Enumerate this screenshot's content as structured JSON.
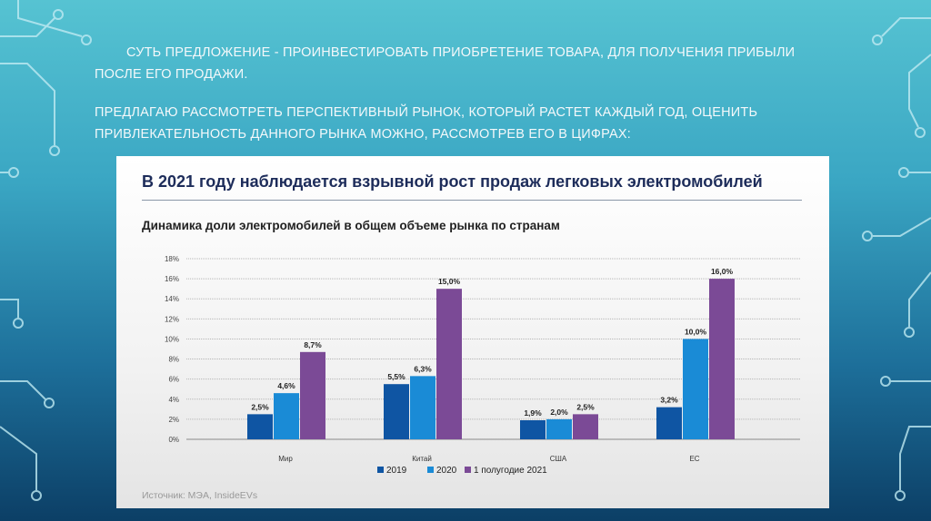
{
  "slide": {
    "paragraph1": "СУТЬ ПРЕДЛОЖЕНИЕ - ПРОИНВЕСТИРОВАТЬ ПРИОБРЕТЕНИЕ ТОВАРА, ДЛЯ ПОЛУЧЕНИЯ ПРИБЫЛИ ПОСЛЕ ЕГО ПРОДАЖИ.",
    "paragraph2": "ПРЕДЛАГАЮ РАССМОТРЕТЬ ПЕРСПЕКТИВНЫЙ РЫНОК, КОТОРЫЙ РАСТЕТ КАЖДЫЙ ГОД, ОЦЕНИТЬ ПРИВЛЕКАТЕЛЬНОСТЬ ДАННОГО РЫНКА МОЖНО, РАССМОТРЕВ ЕГО В ЦИФРАХ:"
  },
  "panel": {
    "title": "В 2021 году наблюдается взрывной рост продаж легковых электромобилей",
    "source": "Источник: МЭА, InsideEVs"
  },
  "chart_data": {
    "type": "bar",
    "title": "Динамика доли электромобилей в общем объеме рынка по странам",
    "categories": [
      "Мир",
      "Китай",
      "США",
      "ЕС"
    ],
    "series": [
      {
        "name": "2019",
        "values": [
          2.5,
          5.5,
          1.9,
          3.2
        ],
        "labels": [
          "2,5%",
          "5,5%",
          "1,9%",
          "3,2%"
        ],
        "color": "#0f55a3"
      },
      {
        "name": "2020",
        "values": [
          4.6,
          6.3,
          2.0,
          10.0
        ],
        "labels": [
          "4,6%",
          "6,3%",
          "2,0%",
          "10,0%"
        ],
        "color": "#1a8bd6"
      },
      {
        "name": "1 полугодие 2021",
        "values": [
          8.7,
          15.0,
          2.5,
          16.0
        ],
        "labels": [
          "8,7%",
          "15,0%",
          "2,5%",
          "16,0%"
        ],
        "color": "#7b4a96"
      }
    ],
    "yticks": [
      "0%",
      "2%",
      "4%",
      "6%",
      "8%",
      "10%",
      "12%",
      "14%",
      "16%",
      "18%"
    ],
    "ylim": [
      0,
      18
    ],
    "grid": true,
    "legend": "bottom"
  }
}
